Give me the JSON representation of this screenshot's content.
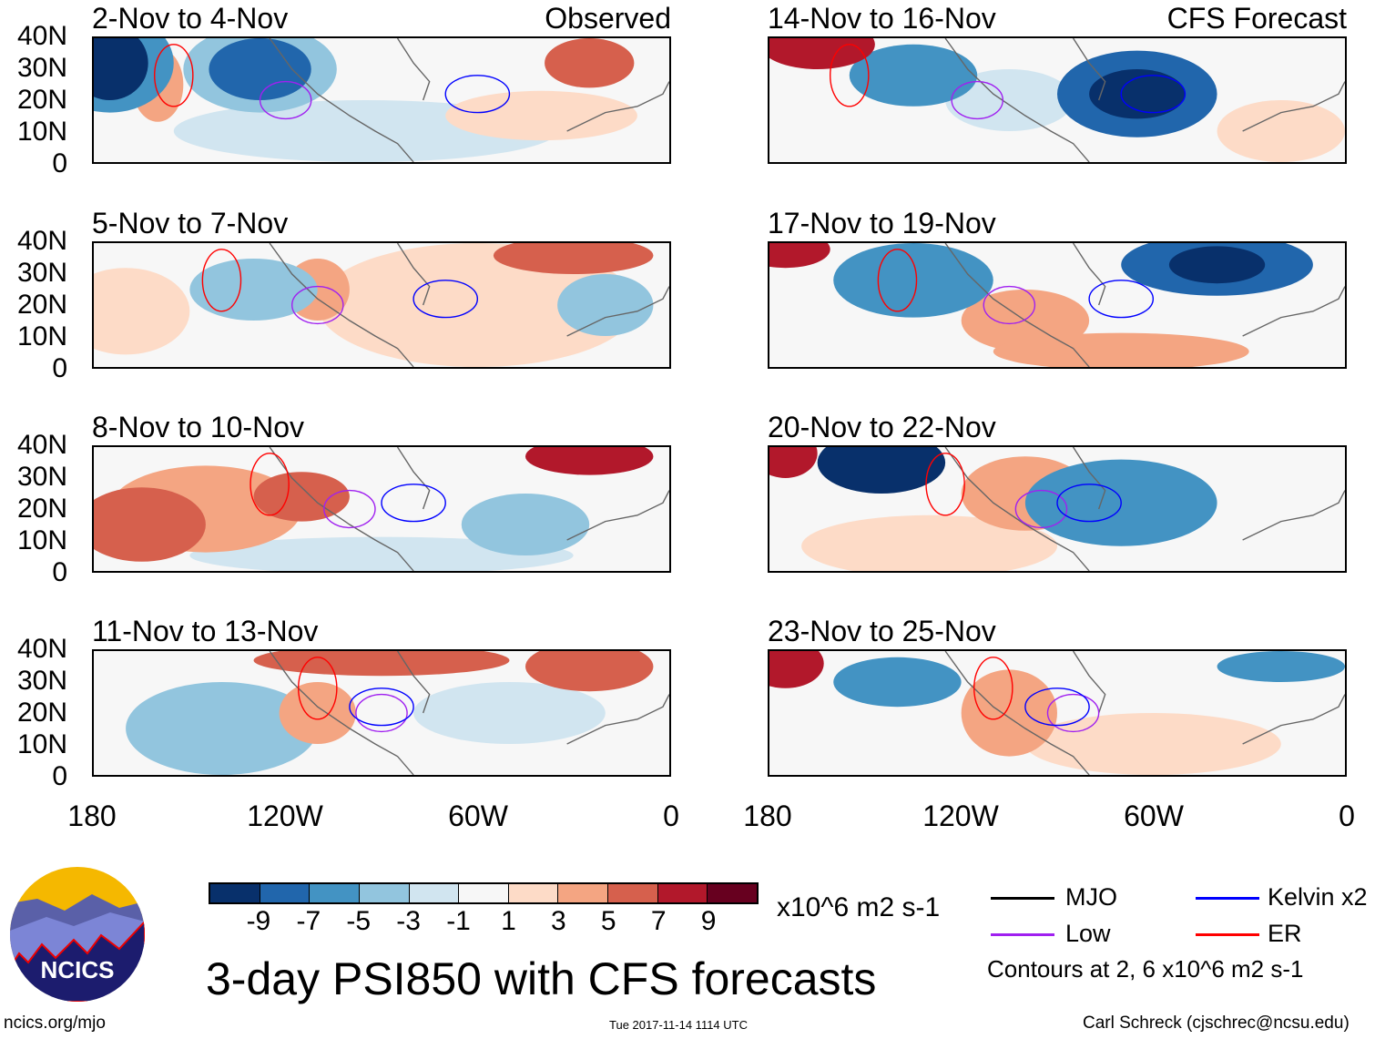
{
  "figure": {
    "title": "3-day PSI850 with CFS forecasts",
    "units": "x10^6 m2 s-1",
    "observed_label": "Observed",
    "forecast_label": "CFS Forecast",
    "contours_note": "Contours at 2, 6 x10^6 m2 s-1",
    "url": "ncics.org/mjo",
    "timestamp": "Tue 2017-11-14 1114 UTC",
    "credit": "Carl Schreck (cjschrec@ncsu.edu)",
    "logo_text": "NCICS"
  },
  "panels": [
    {
      "title": "2-Nov to 4-Nov"
    },
    {
      "title": "5-Nov to 7-Nov"
    },
    {
      "title": "8-Nov to 10-Nov"
    },
    {
      "title": "11-Nov to 13-Nov"
    },
    {
      "title": "14-Nov to 16-Nov"
    },
    {
      "title": "17-Nov to 19-Nov"
    },
    {
      "title": "20-Nov to 22-Nov"
    },
    {
      "title": "23-Nov to 25-Nov"
    }
  ],
  "axes": {
    "lat_labels": [
      "40N",
      "30N",
      "20N",
      "10N",
      "0"
    ],
    "lon_labels": [
      "180",
      "120W",
      "60W",
      "0"
    ]
  },
  "colorbar": {
    "colors": [
      "#08306b",
      "#2166ac",
      "#4393c3",
      "#92c5de",
      "#d1e5f0",
      "#f7f7f7",
      "#fddbc7",
      "#f4a582",
      "#d6604d",
      "#b2182b",
      "#67001f"
    ],
    "labels": [
      "-9",
      "-7",
      "-5",
      "-3",
      "-1",
      "1",
      "3",
      "5",
      "7",
      "9"
    ]
  },
  "legend": [
    {
      "label": "MJO",
      "color": "#000000"
    },
    {
      "label": "Kelvin x2",
      "color": "#0000ff"
    },
    {
      "label": "Low",
      "color": "#a020f0"
    },
    {
      "label": "ER",
      "color": "#ff0000"
    }
  ]
}
